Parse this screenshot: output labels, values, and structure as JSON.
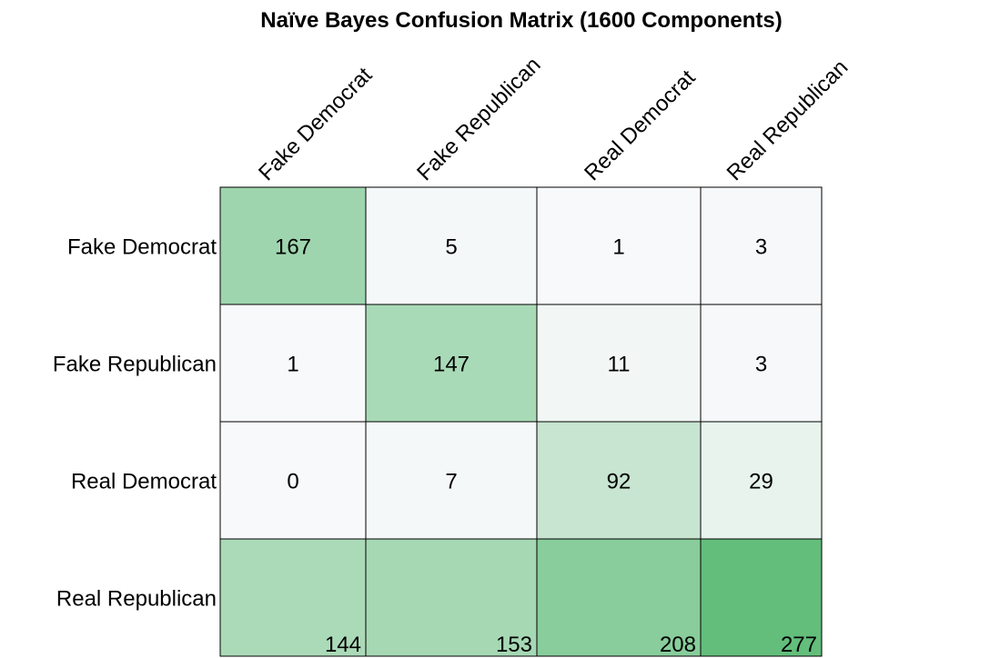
{
  "chart_data": {
    "type": "heatmap",
    "title": "Naïve Bayes Confusion Matrix (1600 Components)",
    "columns": [
      "Fake Democrat",
      "Fake Republican",
      "Real Democrat",
      "Real Republican"
    ],
    "rows": [
      "Fake Democrat",
      "Fake Republican",
      "Real Democrat",
      "Real Republican"
    ],
    "values": [
      [
        167,
        5,
        1,
        3
      ],
      [
        1,
        147,
        11,
        3
      ],
      [
        0,
        7,
        92,
        29
      ],
      [
        144,
        153,
        208,
        277
      ]
    ],
    "colors": {
      "low": "#f8f9fb",
      "high": "#63be7b"
    }
  }
}
